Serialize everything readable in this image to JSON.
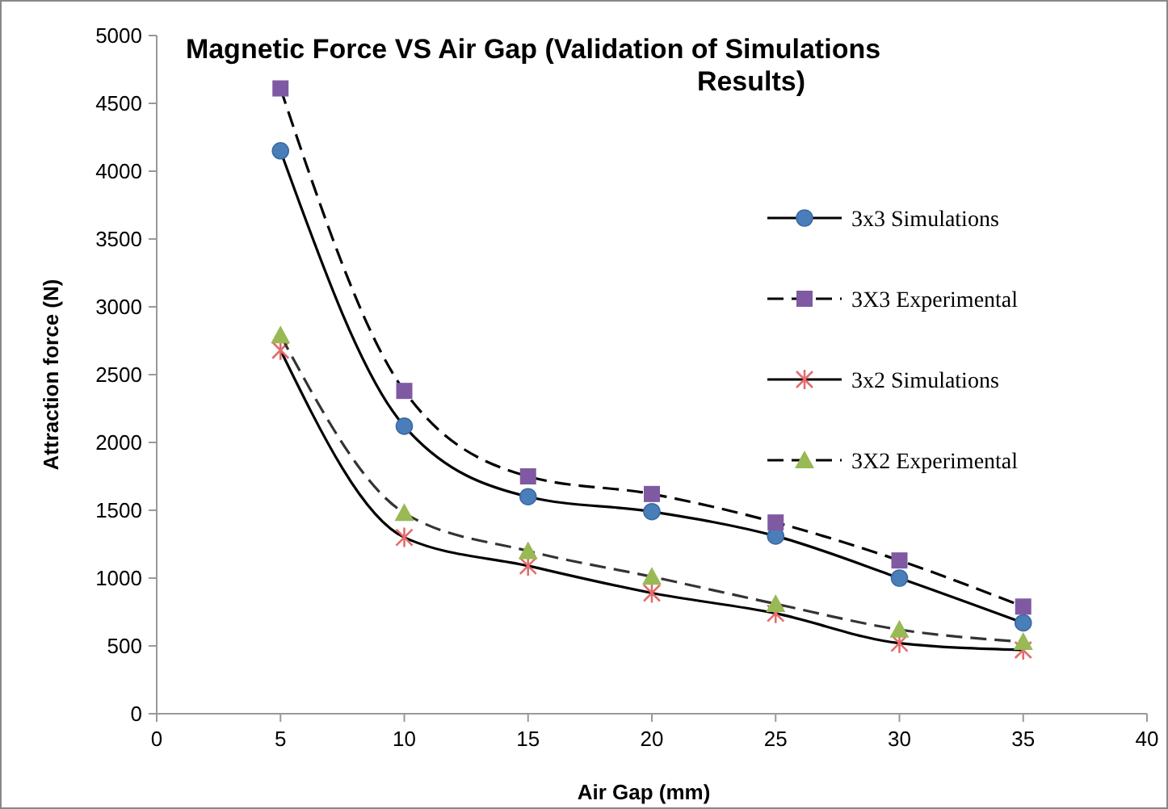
{
  "chart_data": {
    "type": "line",
    "title": "Magnetic Force VS Air Gap (Validation of Simulations Results)",
    "xlabel": "Air Gap (mm)",
    "ylabel": "Attraction force (N)",
    "x": [
      5,
      10,
      15,
      20,
      25,
      30,
      35
    ],
    "xlim": [
      0,
      40
    ],
    "xticks": [
      0,
      5,
      10,
      15,
      20,
      25,
      30,
      35,
      40
    ],
    "ylim": [
      0,
      5000
    ],
    "yticks": [
      0,
      500,
      1000,
      1500,
      2000,
      2500,
      3000,
      3500,
      4000,
      4500,
      5000
    ],
    "grid": false,
    "legend": "top right",
    "series": [
      {
        "name": "3x3 Simulations",
        "color": "#4a7ebb",
        "marker": "circle",
        "line_style": "solid",
        "values": [
          4150,
          2120,
          1600,
          1490,
          1310,
          1000,
          670
        ]
      },
      {
        "name": "3X3 Experimental",
        "color": "#7f5aa2",
        "marker": "square",
        "line_style": "dashed",
        "values": [
          4610,
          2380,
          1750,
          1620,
          1410,
          1130,
          790
        ]
      },
      {
        "name": "3x2 Simulations",
        "color": "#e46c6c",
        "marker": "cross",
        "line_style": "solid",
        "values": [
          2680,
          1300,
          1090,
          890,
          740,
          520,
          470
        ]
      },
      {
        "name": "3X2  Experimental",
        "color": "#98b954",
        "marker": "triangle",
        "line_style": "dashed",
        "values": [
          2790,
          1480,
          1200,
          1010,
          810,
          620,
          530
        ]
      }
    ]
  }
}
